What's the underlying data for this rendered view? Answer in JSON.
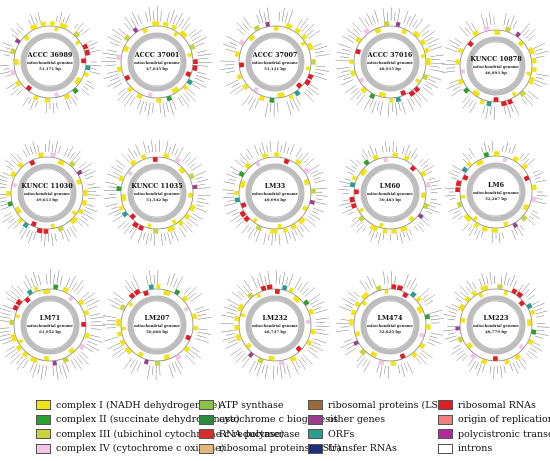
{
  "genomes": [
    {
      "name": "ACCC 36989",
      "subtitle": "mitochondrial genome",
      "size": "51,171 bp"
    },
    {
      "name": "ACCC 37001",
      "subtitle": "mitochondrial genome",
      "size": "47,635 bp"
    },
    {
      "name": "ACCC 37007",
      "subtitle": "mitochondrial genome",
      "size": "51,131 bp"
    },
    {
      "name": "ACCC 37016",
      "subtitle": "mitochondrial genome",
      "size": "48,915 bp"
    },
    {
      "name": "KUNCC 10878",
      "subtitle": "mitochondrial genome",
      "size": "46,893 bp"
    },
    {
      "name": "KUNCC 11030",
      "subtitle": "mitochondrial genome",
      "size": "49,613 bp"
    },
    {
      "name": "KUNCC 11035",
      "subtitle": "mitochondrial genome",
      "size": "51,542 bp"
    },
    {
      "name": "LM33",
      "subtitle": "mitochondrial genome",
      "size": "46,094 bp"
    },
    {
      "name": "LM60",
      "subtitle": "mitochondrial genome",
      "size": "50,483 bp"
    },
    {
      "name": "LM6",
      "subtitle": "mitochondrial genome",
      "size": "52,267 bp"
    },
    {
      "name": "LM71",
      "subtitle": "mitochondrial genome",
      "size": "61,952 bp"
    },
    {
      "name": "LM207",
      "subtitle": "mitochondrial genome",
      "size": "50,606 bp"
    },
    {
      "name": "LM232",
      "subtitle": "mitochondrial genome",
      "size": "48,737 bp"
    },
    {
      "name": "LM474",
      "subtitle": "mitochondrial genome",
      "size": "52,825 bp"
    },
    {
      "name": "LM223",
      "subtitle": "mitochondrial genome",
      "size": "48,779 bp"
    }
  ],
  "legend": [
    {
      "label": "complex I (NADH dehydrogenase)",
      "color": "#f2e318"
    },
    {
      "label": "complex II (succinate dehydrogenase)",
      "color": "#2e9e2e"
    },
    {
      "label": "complex III (ubichinol cytochrome c reductase)",
      "color": "#c9d43a"
    },
    {
      "label": "complex IV (cytochrome c oxidase)",
      "color": "#f2c4e6"
    },
    {
      "label": "ATP synthase",
      "color": "#8bc34a"
    },
    {
      "label": "cytochrome c biogenesis",
      "color": "#2d8a3e"
    },
    {
      "label": "RNA polymerase",
      "color": "#d32f2f"
    },
    {
      "label": "ribosomal proteins (SSU)",
      "color": "#e2b77e"
    },
    {
      "label": "ribosomal proteins (LSU)",
      "color": "#9a6a3a"
    },
    {
      "label": "other genes",
      "color": "#9c3e8c"
    },
    {
      "label": "ORFs",
      "color": "#2a9d8f"
    },
    {
      "label": "transfer RNAs",
      "color": "#1f2d7a"
    },
    {
      "label": "ribosomal RNAs",
      "color": "#e31b23"
    },
    {
      "label": "origin of replication",
      "color": "#f08080"
    },
    {
      "label": "polycistronic transcripts",
      "color": "#b02a9e"
    },
    {
      "label": "introns",
      "color": "#ffffff"
    }
  ]
}
